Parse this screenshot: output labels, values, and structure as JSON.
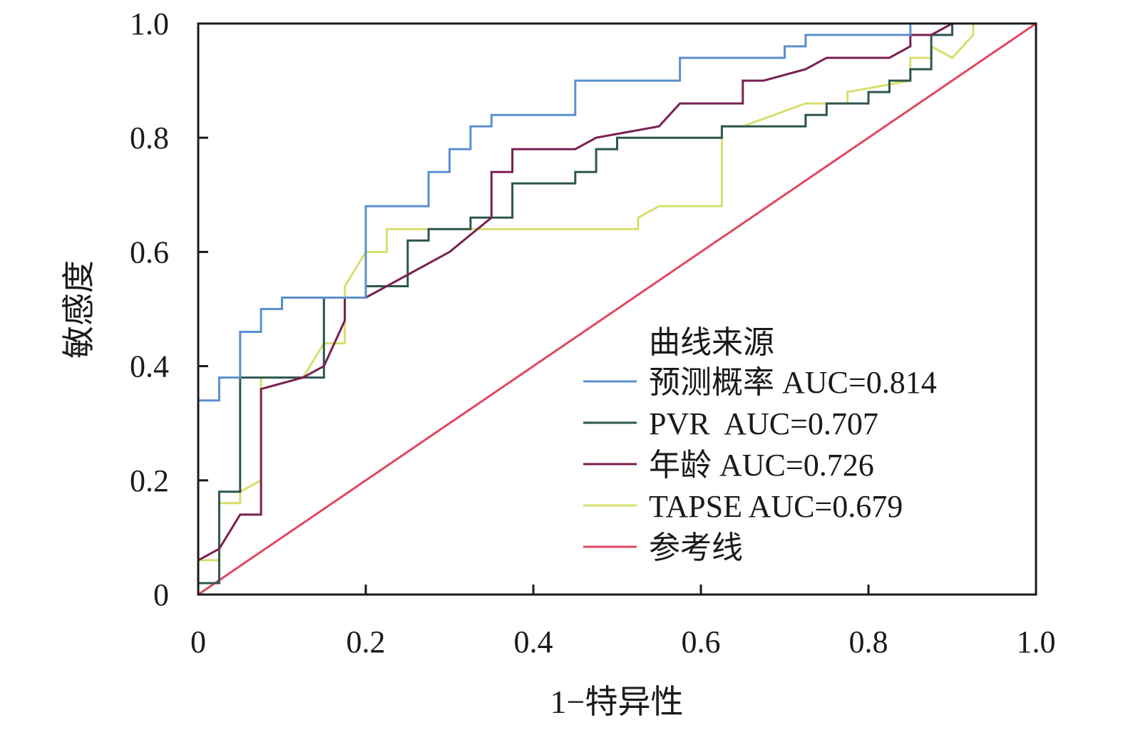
{
  "chart_data": {
    "type": "line",
    "xlabel": "1−特异性",
    "ylabel": "敏感度",
    "xlim": [
      0,
      1
    ],
    "ylim": [
      0,
      1
    ],
    "x_ticks": [
      "0",
      "0.2",
      "0.4",
      "0.6",
      "0.8",
      "1.0"
    ],
    "y_ticks": [
      "0",
      "0.2",
      "0.4",
      "0.6",
      "0.8",
      "1.0"
    ],
    "grid": false,
    "legend": {
      "title": "曲线来源",
      "placement": "bottom-right"
    },
    "series": [
      {
        "name": "预测概率 AUC=0.814",
        "color": "#5b8fd0",
        "points": [
          [
            0,
            0
          ],
          [
            0,
            0.34
          ],
          [
            0.025,
            0.34
          ],
          [
            0.025,
            0.38
          ],
          [
            0.05,
            0.38
          ],
          [
            0.05,
            0.46
          ],
          [
            0.075,
            0.46
          ],
          [
            0.075,
            0.5
          ],
          [
            0.1,
            0.5
          ],
          [
            0.1,
            0.52
          ],
          [
            0.2,
            0.52
          ],
          [
            0.2,
            0.68
          ],
          [
            0.275,
            0.68
          ],
          [
            0.275,
            0.74
          ],
          [
            0.3,
            0.74
          ],
          [
            0.3,
            0.78
          ],
          [
            0.325,
            0.78
          ],
          [
            0.325,
            0.82
          ],
          [
            0.35,
            0.82
          ],
          [
            0.35,
            0.84
          ],
          [
            0.45,
            0.84
          ],
          [
            0.45,
            0.9
          ],
          [
            0.575,
            0.9
          ],
          [
            0.575,
            0.94
          ],
          [
            0.7,
            0.94
          ],
          [
            0.7,
            0.96
          ],
          [
            0.725,
            0.96
          ],
          [
            0.725,
            0.98
          ],
          [
            0.85,
            0.98
          ],
          [
            0.85,
            1.0
          ],
          [
            1.0,
            1.0
          ]
        ]
      },
      {
        "name": "PVR  AUC=0.707",
        "color": "#2d5650",
        "points": [
          [
            0,
            0
          ],
          [
            0,
            0.02
          ],
          [
            0.025,
            0.02
          ],
          [
            0.025,
            0.18
          ],
          [
            0.05,
            0.18
          ],
          [
            0.05,
            0.38
          ],
          [
            0.15,
            0.38
          ],
          [
            0.15,
            0.52
          ],
          [
            0.175,
            0.52
          ],
          [
            0.2,
            0.52
          ],
          [
            0.2,
            0.54
          ],
          [
            0.25,
            0.54
          ],
          [
            0.25,
            0.62
          ],
          [
            0.275,
            0.62
          ],
          [
            0.275,
            0.64
          ],
          [
            0.325,
            0.64
          ],
          [
            0.325,
            0.66
          ],
          [
            0.375,
            0.66
          ],
          [
            0.375,
            0.72
          ],
          [
            0.45,
            0.72
          ],
          [
            0.45,
            0.74
          ],
          [
            0.475,
            0.74
          ],
          [
            0.475,
            0.78
          ],
          [
            0.5,
            0.78
          ],
          [
            0.5,
            0.8
          ],
          [
            0.625,
            0.8
          ],
          [
            0.625,
            0.82
          ],
          [
            0.725,
            0.82
          ],
          [
            0.725,
            0.84
          ],
          [
            0.75,
            0.84
          ],
          [
            0.75,
            0.86
          ],
          [
            0.8,
            0.86
          ],
          [
            0.8,
            0.88
          ],
          [
            0.825,
            0.88
          ],
          [
            0.825,
            0.9
          ],
          [
            0.85,
            0.9
          ],
          [
            0.85,
            0.92
          ],
          [
            0.875,
            0.92
          ],
          [
            0.875,
            0.98
          ],
          [
            0.9,
            0.98
          ],
          [
            0.9,
            1.0
          ],
          [
            1.0,
            1.0
          ]
        ]
      },
      {
        "name": "年龄 AUC=0.726",
        "color": "#7a1f52",
        "points": [
          [
            0,
            0.06
          ],
          [
            0.025,
            0.08
          ],
          [
            0.05,
            0.14
          ],
          [
            0.075,
            0.14
          ],
          [
            0.075,
            0.36
          ],
          [
            0.125,
            0.38
          ],
          [
            0.15,
            0.4
          ],
          [
            0.175,
            0.48
          ],
          [
            0.175,
            0.52
          ],
          [
            0.2,
            0.52
          ],
          [
            0.3,
            0.6
          ],
          [
            0.35,
            0.66
          ],
          [
            0.35,
            0.74
          ],
          [
            0.375,
            0.74
          ],
          [
            0.375,
            0.78
          ],
          [
            0.45,
            0.78
          ],
          [
            0.475,
            0.8
          ],
          [
            0.55,
            0.82
          ],
          [
            0.575,
            0.86
          ],
          [
            0.65,
            0.86
          ],
          [
            0.65,
            0.9
          ],
          [
            0.675,
            0.9
          ],
          [
            0.725,
            0.92
          ],
          [
            0.75,
            0.94
          ],
          [
            0.825,
            0.94
          ],
          [
            0.85,
            0.96
          ],
          [
            0.85,
            0.98
          ],
          [
            0.875,
            0.98
          ],
          [
            0.9,
            1.0
          ],
          [
            1.0,
            1.0
          ]
        ]
      },
      {
        "name": "TAPSE AUC=0.679",
        "color": "#d6df6e",
        "points": [
          [
            0,
            0
          ],
          [
            0,
            0.06
          ],
          [
            0.025,
            0.06
          ],
          [
            0.025,
            0.16
          ],
          [
            0.05,
            0.16
          ],
          [
            0.05,
            0.18
          ],
          [
            0.075,
            0.2
          ],
          [
            0.075,
            0.38
          ],
          [
            0.125,
            0.38
          ],
          [
            0.15,
            0.44
          ],
          [
            0.175,
            0.44
          ],
          [
            0.175,
            0.54
          ],
          [
            0.2,
            0.6
          ],
          [
            0.225,
            0.6
          ],
          [
            0.225,
            0.64
          ],
          [
            0.525,
            0.64
          ],
          [
            0.525,
            0.66
          ],
          [
            0.55,
            0.68
          ],
          [
            0.625,
            0.68
          ],
          [
            0.625,
            0.82
          ],
          [
            0.65,
            0.82
          ],
          [
            0.725,
            0.86
          ],
          [
            0.775,
            0.86
          ],
          [
            0.775,
            0.88
          ],
          [
            0.85,
            0.9
          ],
          [
            0.85,
            0.94
          ],
          [
            0.875,
            0.94
          ],
          [
            0.875,
            0.96
          ],
          [
            0.9,
            0.94
          ],
          [
            0.925,
            0.98
          ],
          [
            0.925,
            1.0
          ],
          [
            1.0,
            1.0
          ]
        ]
      },
      {
        "name": "参考线",
        "color": "#e0475f",
        "points": [
          [
            0,
            0
          ],
          [
            1,
            1
          ]
        ]
      }
    ]
  }
}
